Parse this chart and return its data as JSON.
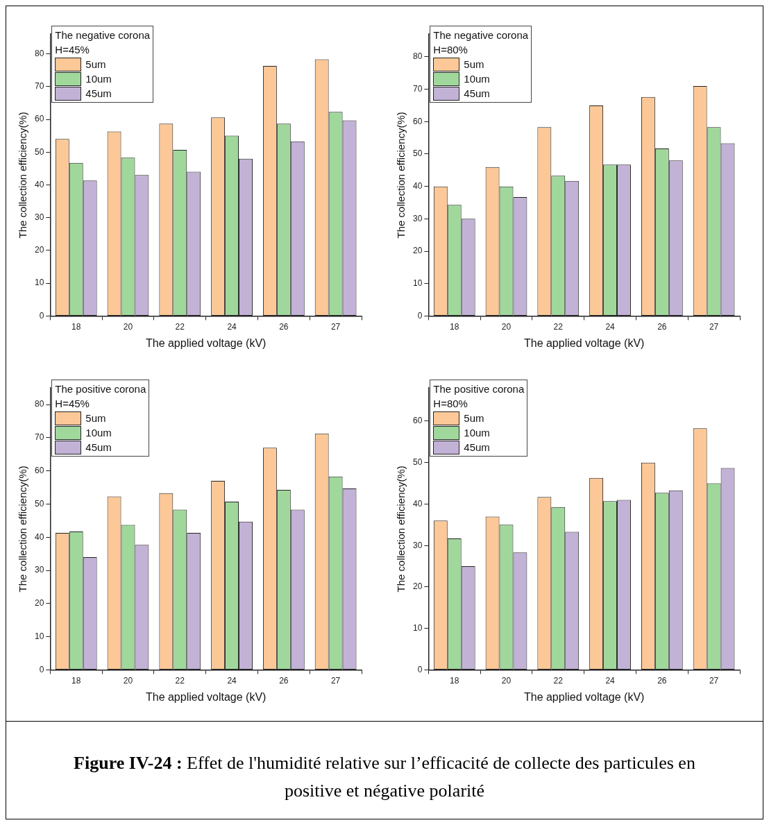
{
  "chart_data": [
    {
      "type": "bar",
      "legend_title": "The negative corona\nH=45%",
      "xlabel": "The applied voltage (kV)",
      "ylabel": "The collection efficiency(%)",
      "categories": [
        "18",
        "20",
        "22",
        "24",
        "26",
        "27"
      ],
      "ylim": [
        0,
        86
      ],
      "yticks": [
        0,
        10,
        20,
        30,
        40,
        50,
        60,
        70,
        80
      ],
      "grid": false,
      "legend": "top left",
      "series": [
        {
          "name": "5um",
          "color": "#fdc897",
          "values": [
            54,
            56.3,
            58.7,
            60.6,
            76.3,
            78.3
          ]
        },
        {
          "name": "10um",
          "color": "#a0d89c",
          "values": [
            46.7,
            48.3,
            50.7,
            55,
            58.7,
            62.3
          ]
        },
        {
          "name": "45um",
          "color": "#c2b2d6",
          "values": [
            41.3,
            43,
            44,
            48,
            53.3,
            59.7
          ]
        }
      ]
    },
    {
      "type": "bar",
      "legend_title": "The negative corona\nH=80%",
      "xlabel": "The applied voltage (kV)",
      "ylabel": "The collection efficiency(%)",
      "categories": [
        "18",
        "20",
        "22",
        "24",
        "26",
        "27"
      ],
      "ylim": [
        0,
        87
      ],
      "yticks": [
        0,
        10,
        20,
        30,
        40,
        50,
        60,
        70,
        80
      ],
      "grid": false,
      "legend": "top left",
      "series": [
        {
          "name": "5um",
          "color": "#fdc897",
          "values": [
            40,
            46,
            58.3,
            65,
            67.6,
            71
          ]
        },
        {
          "name": "10um",
          "color": "#a0d89c",
          "values": [
            34.3,
            40,
            43.3,
            46.7,
            51.7,
            58.3
          ]
        },
        {
          "name": "45um",
          "color": "#c2b2d6",
          "values": [
            30,
            36.7,
            41.7,
            46.7,
            48,
            53.3
          ]
        }
      ]
    },
    {
      "type": "bar",
      "legend_title": "The positive corona\nH=45%",
      "xlabel": "The applied voltage (kV)",
      "ylabel": "The collection efficiency(%)",
      "categories": [
        "18",
        "20",
        "22",
        "24",
        "26",
        "27"
      ],
      "ylim": [
        0,
        85
      ],
      "yticks": [
        0,
        10,
        20,
        30,
        40,
        50,
        60,
        70,
        80
      ],
      "grid": false,
      "legend": "top left",
      "series": [
        {
          "name": "5um",
          "color": "#fdc897",
          "values": [
            41.3,
            52.3,
            53.3,
            57,
            67,
            71.3
          ]
        },
        {
          "name": "10um",
          "color": "#a0d89c",
          "values": [
            41.7,
            43.7,
            48.3,
            50.7,
            54.3,
            58.3
          ]
        },
        {
          "name": "45um",
          "color": "#c2b2d6",
          "values": [
            34,
            37.7,
            41.3,
            44.7,
            48.3,
            54.7
          ]
        }
      ]
    },
    {
      "type": "bar",
      "legend_title": "The positive corona\nH=80%",
      "xlabel": "The applied voltage (kV)",
      "ylabel": "The collection efficiency(%)",
      "categories": [
        "18",
        "20",
        "22",
        "24",
        "26",
        "27"
      ],
      "ylim": [
        0,
        68
      ],
      "yticks": [
        0,
        10,
        20,
        30,
        40,
        50,
        60
      ],
      "grid": false,
      "legend": "top left",
      "series": [
        {
          "name": "5um",
          "color": "#fdc897",
          "values": [
            36,
            37,
            41.7,
            46.3,
            50,
            58.3
          ]
        },
        {
          "name": "10um",
          "color": "#a0d89c",
          "values": [
            31.7,
            35,
            39.3,
            40.7,
            42.7,
            45
          ]
        },
        {
          "name": "45um",
          "color": "#c2b2d6",
          "values": [
            25,
            28.3,
            33.3,
            41,
            43.3,
            48.7
          ]
        }
      ]
    },
    {
      "type": "other",
      "title": "Figure IV-24 :",
      "annotations": [
        "Effet de l'humidité relative sur l’efficacité de collecte des particules en positive et négative polarité"
      ]
    }
  ]
}
